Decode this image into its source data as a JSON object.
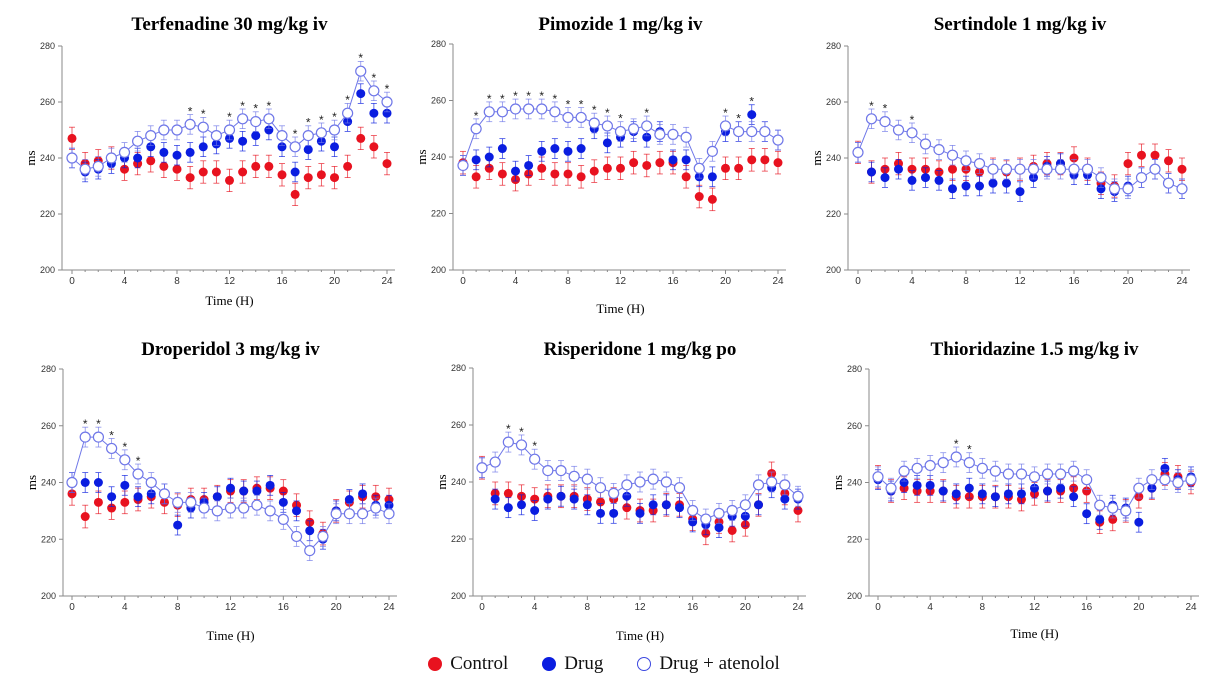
{
  "colors": {
    "control": "#e8121f",
    "drug": "#0a1de0",
    "atenolol": "#6f77e8",
    "axis": "#8a8a8a"
  },
  "legend": {
    "control": "Control",
    "drug": "Drug",
    "atenolol": "Drug + atenolol"
  },
  "chart_data": [
    {
      "type": "line",
      "title": "Terfenadine 30 mg/kg iv",
      "xlabel": "Time (H)",
      "ylabel": "ms",
      "xlim": [
        0,
        24
      ],
      "ylim": [
        200,
        280
      ],
      "xticks": [
        0,
        4,
        8,
        12,
        16,
        20,
        24
      ],
      "yticks": [
        200,
        220,
        240,
        260,
        280
      ],
      "x": [
        0,
        1,
        2,
        3,
        4,
        5,
        6,
        7,
        8,
        9,
        10,
        11,
        12,
        13,
        14,
        15,
        16,
        17,
        18,
        19,
        20,
        21,
        22,
        23,
        24
      ],
      "series": [
        {
          "name": "Control",
          "values": [
            247,
            238,
            239,
            240,
            236,
            238,
            239,
            237,
            236,
            233,
            235,
            235,
            232,
            235,
            237,
            237,
            234,
            227,
            233,
            234,
            233,
            237,
            247,
            244,
            238
          ]
        },
        {
          "name": "Drug",
          "values": [
            240,
            235,
            236,
            238,
            240,
            240,
            244,
            242,
            241,
            242,
            244,
            245,
            247,
            246,
            248,
            250,
            244,
            235,
            243,
            246,
            244,
            253,
            263,
            256,
            256
          ]
        },
        {
          "name": "Drug + atenolol",
          "values": [
            240,
            236,
            237,
            240,
            242,
            246,
            248,
            250,
            250,
            252,
            251,
            248,
            250,
            254,
            253,
            254,
            248,
            244,
            248,
            249,
            250,
            256,
            271,
            264,
            260
          ]
        }
      ],
      "significance": [
        9,
        10,
        12,
        13,
        14,
        15,
        17,
        18,
        19,
        20,
        21,
        22,
        23,
        24
      ]
    },
    {
      "type": "line",
      "title": "Pimozide 1 mg/kg iv",
      "xlabel": "Time (H)",
      "ylabel": "ms",
      "xlim": [
        0,
        24
      ],
      "ylim": [
        200,
        280
      ],
      "xticks": [
        0,
        4,
        8,
        12,
        16,
        20,
        24
      ],
      "yticks": [
        200,
        220,
        240,
        260,
        280
      ],
      "x": [
        0,
        1,
        2,
        3,
        4,
        5,
        6,
        7,
        8,
        9,
        10,
        11,
        12,
        13,
        14,
        15,
        16,
        17,
        18,
        19,
        20,
        21,
        22,
        23,
        24
      ],
      "series": [
        {
          "name": "Control",
          "values": [
            238,
            233,
            236,
            234,
            232,
            234,
            236,
            234,
            234,
            233,
            235,
            236,
            236,
            238,
            237,
            238,
            238,
            233,
            226,
            225,
            236,
            236,
            239,
            239,
            238
          ]
        },
        {
          "name": "Drug",
          "values": [
            237,
            239,
            240,
            243,
            235,
            237,
            242,
            243,
            242,
            243,
            250,
            245,
            247,
            249,
            247,
            249,
            239,
            239,
            233,
            233,
            249,
            249,
            255,
            249,
            246
          ]
        },
        {
          "name": "Drug + atenolol",
          "values": [
            237,
            250,
            256,
            256,
            257,
            257,
            257,
            256,
            254,
            254,
            252,
            251,
            249,
            250,
            251,
            248,
            248,
            247,
            236,
            242,
            251,
            249,
            249,
            249,
            246
          ]
        }
      ],
      "significance": [
        1,
        2,
        3,
        4,
        5,
        6,
        7,
        8,
        9,
        10,
        11,
        12,
        14,
        20,
        21,
        22
      ]
    },
    {
      "type": "line",
      "title": "Sertindole 1 mg/kg iv",
      "xlabel": "",
      "ylabel": "ms",
      "xlim": [
        0,
        24
      ],
      "ylim": [
        200,
        280
      ],
      "xticks": [
        0,
        4,
        8,
        12,
        16,
        20,
        24
      ],
      "yticks": [
        200,
        220,
        240,
        260,
        280
      ],
      "x": [
        0,
        1,
        2,
        3,
        4,
        5,
        6,
        7,
        8,
        9,
        10,
        11,
        12,
        13,
        14,
        15,
        16,
        17,
        18,
        19,
        20,
        21,
        22,
        23,
        24
      ],
      "series": [
        {
          "name": "Control",
          "values": [
            242,
            235,
            236,
            238,
            236,
            236,
            235,
            236,
            236,
            235,
            236,
            235,
            236,
            237,
            238,
            238,
            240,
            236,
            231,
            230,
            238,
            241,
            241,
            239,
            236
          ]
        },
        {
          "name": "Drug",
          "values": [
            242,
            235,
            233,
            236,
            232,
            233,
            232,
            229,
            230,
            230,
            231,
            231,
            228,
            233,
            237,
            238,
            234,
            234,
            229,
            228,
            230,
            233,
            236,
            231,
            229
          ]
        },
        {
          "name": "Drug + atenolol",
          "values": [
            242,
            254,
            253,
            250,
            249,
            245,
            243,
            241,
            239,
            238,
            236,
            236,
            236,
            236,
            236,
            236,
            236,
            236,
            233,
            229,
            229,
            233,
            236,
            231,
            229
          ]
        }
      ],
      "significance": [
        1,
        2,
        4
      ]
    },
    {
      "type": "line",
      "title": "Droperidol 3 mg/kg iv",
      "xlabel": "Time (H)",
      "ylabel": "ms",
      "xlim": [
        0,
        24
      ],
      "ylim": [
        200,
        280
      ],
      "xticks": [
        0,
        4,
        8,
        12,
        16,
        20,
        24
      ],
      "yticks": [
        200,
        220,
        240,
        260,
        280
      ],
      "x": [
        0,
        1,
        2,
        3,
        4,
        5,
        6,
        7,
        8,
        9,
        10,
        11,
        12,
        13,
        14,
        15,
        16,
        17,
        18,
        19,
        20,
        21,
        22,
        23,
        24
      ],
      "series": [
        {
          "name": "Control",
          "values": [
            236,
            228,
            233,
            231,
            233,
            234,
            235,
            233,
            232,
            234,
            234,
            235,
            237,
            237,
            238,
            238,
            237,
            232,
            226,
            222,
            230,
            233,
            235,
            235,
            234
          ]
        },
        {
          "name": "Drug",
          "values": [
            240,
            240,
            240,
            235,
            239,
            235,
            236,
            236,
            225,
            231,
            233,
            235,
            238,
            237,
            237,
            239,
            233,
            230,
            223,
            220,
            230,
            234,
            236,
            232,
            232
          ]
        },
        {
          "name": "Drug + atenolol",
          "values": [
            240,
            256,
            256,
            252,
            248,
            243,
            240,
            236,
            233,
            233,
            231,
            230,
            231,
            231,
            232,
            230,
            227,
            221,
            216,
            221,
            229,
            229,
            229,
            231,
            229
          ]
        }
      ],
      "significance": [
        1,
        2,
        3,
        4,
        5
      ]
    },
    {
      "type": "line",
      "title": "Risperidone 1 mg/kg po",
      "xlabel": "Time (H)",
      "ylabel": "ms",
      "xlim": [
        0,
        24
      ],
      "ylim": [
        200,
        280
      ],
      "xticks": [
        0,
        4,
        8,
        12,
        16,
        20,
        24
      ],
      "yticks": [
        200,
        220,
        240,
        260,
        280
      ],
      "x": [
        0,
        1,
        2,
        3,
        4,
        5,
        6,
        7,
        8,
        9,
        10,
        11,
        12,
        13,
        14,
        15,
        16,
        17,
        18,
        19,
        20,
        21,
        22,
        23,
        24
      ],
      "series": [
        {
          "name": "Control",
          "values": [
            245,
            236,
            236,
            235,
            234,
            235,
            235,
            235,
            234,
            233,
            234,
            231,
            230,
            230,
            232,
            232,
            227,
            222,
            226,
            223,
            225,
            232,
            243,
            236,
            230
          ]
        },
        {
          "name": "Drug",
          "values": [
            245,
            234,
            231,
            232,
            230,
            234,
            235,
            234,
            232,
            229,
            229,
            235,
            229,
            232,
            232,
            231,
            226,
            225,
            224,
            228,
            228,
            232,
            238,
            234,
            234
          ]
        },
        {
          "name": "Drug + atenolol",
          "values": [
            245,
            247,
            254,
            253,
            248,
            244,
            244,
            242,
            241,
            238,
            236,
            239,
            240,
            241,
            240,
            238,
            230,
            227,
            229,
            230,
            232,
            239,
            240,
            239,
            235
          ]
        }
      ],
      "significance": [
        2,
        3,
        4
      ]
    },
    {
      "type": "line",
      "title": "Thioridazine 1.5 mg/kg iv",
      "xlabel": "Time (H)",
      "ylabel": "ms",
      "xlim": [
        0,
        24
      ],
      "ylim": [
        200,
        280
      ],
      "xticks": [
        0,
        4,
        8,
        12,
        16,
        20,
        24
      ],
      "yticks": [
        200,
        220,
        240,
        260,
        280
      ],
      "x": [
        0,
        1,
        2,
        3,
        4,
        5,
        6,
        7,
        8,
        9,
        10,
        11,
        12,
        13,
        14,
        15,
        16,
        17,
        18,
        19,
        20,
        21,
        22,
        23,
        24
      ],
      "series": [
        {
          "name": "Control",
          "values": [
            242,
            237,
            238,
            237,
            237,
            237,
            235,
            235,
            235,
            235,
            235,
            234,
            236,
            237,
            237,
            238,
            237,
            226,
            227,
            230,
            235,
            238,
            243,
            242,
            240
          ]
        },
        {
          "name": "Drug",
          "values": [
            241,
            237,
            240,
            239,
            239,
            237,
            236,
            238,
            236,
            235,
            236,
            236,
            238,
            237,
            238,
            235,
            229,
            227,
            232,
            231,
            226,
            238,
            245,
            241,
            242
          ]
        },
        {
          "name": "Drug + atenolol",
          "values": [
            242,
            238,
            244,
            245,
            246,
            247,
            249,
            247,
            245,
            244,
            243,
            243,
            242,
            243,
            243,
            244,
            241,
            232,
            231,
            230,
            238,
            241,
            241,
            240,
            241
          ]
        }
      ],
      "significance": [
        6,
        7
      ]
    }
  ]
}
